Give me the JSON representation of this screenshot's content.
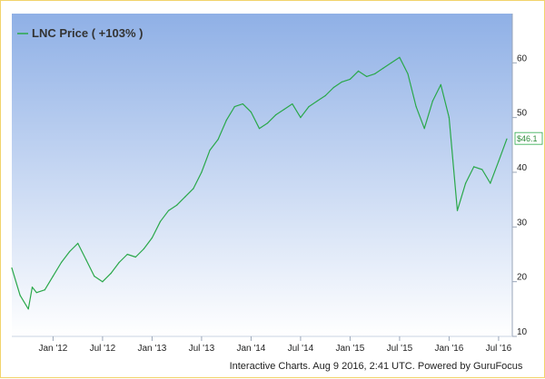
{
  "chart_data": {
    "type": "line",
    "legend": {
      "label": "LNC Price ( +103% )",
      "position": "top-left"
    },
    "footer": "Interactive Charts. Aug 9 2016, 2:41 UTC. Powered by GuruFocus",
    "y_axis": {
      "side": "right",
      "ticks": [
        10,
        20,
        30,
        40,
        50,
        60
      ],
      "ylim": [
        10,
        69
      ]
    },
    "x_axis": {
      "ticks": [
        "Jan '12",
        "Jul '12",
        "Jan '13",
        "Jul '13",
        "Jan '14",
        "Jul '14",
        "Jan '15",
        "Jul '15",
        "Jan '16",
        "Jul '16"
      ]
    },
    "last_value_label": "$46.1",
    "grid": false,
    "series": [
      {
        "name": "LNC Price",
        "color": "#2aa84a",
        "x": [
          "2011-08",
          "2011-09",
          "2011-10",
          "2011-10",
          "2011-11",
          "2011-12",
          "2012-01",
          "2012-02",
          "2012-03",
          "2012-04",
          "2012-05",
          "2012-06",
          "2012-07",
          "2012-08",
          "2012-09",
          "2012-10",
          "2012-11",
          "2012-12",
          "2013-01",
          "2013-02",
          "2013-03",
          "2013-04",
          "2013-05",
          "2013-06",
          "2013-07",
          "2013-08",
          "2013-09",
          "2013-10",
          "2013-11",
          "2013-12",
          "2014-01",
          "2014-02",
          "2014-03",
          "2014-04",
          "2014-05",
          "2014-06",
          "2014-07",
          "2014-08",
          "2014-09",
          "2014-10",
          "2014-11",
          "2014-12",
          "2015-01",
          "2015-02",
          "2015-03",
          "2015-04",
          "2015-05",
          "2015-06",
          "2015-07",
          "2015-08",
          "2015-09",
          "2015-10",
          "2015-11",
          "2015-12",
          "2016-01",
          "2016-02",
          "2016-03",
          "2016-04",
          "2016-05",
          "2016-06",
          "2016-07",
          "2016-08"
        ],
        "values": [
          22.5,
          17.5,
          15,
          19,
          18,
          18.5,
          21,
          23.5,
          25.5,
          27,
          24,
          21,
          20,
          21.5,
          23.5,
          25,
          24.5,
          26,
          28,
          31,
          33,
          34,
          35.5,
          37,
          40,
          44,
          46,
          49.5,
          52,
          52.5,
          51,
          48,
          49,
          50.5,
          51.5,
          52.5,
          50,
          52,
          53,
          54,
          55.5,
          56.5,
          57,
          58.5,
          57.5,
          58,
          59,
          60,
          61,
          58,
          52,
          48,
          53,
          56,
          50,
          33,
          38,
          41,
          40.5,
          38,
          42,
          46.1
        ]
      }
    ]
  }
}
